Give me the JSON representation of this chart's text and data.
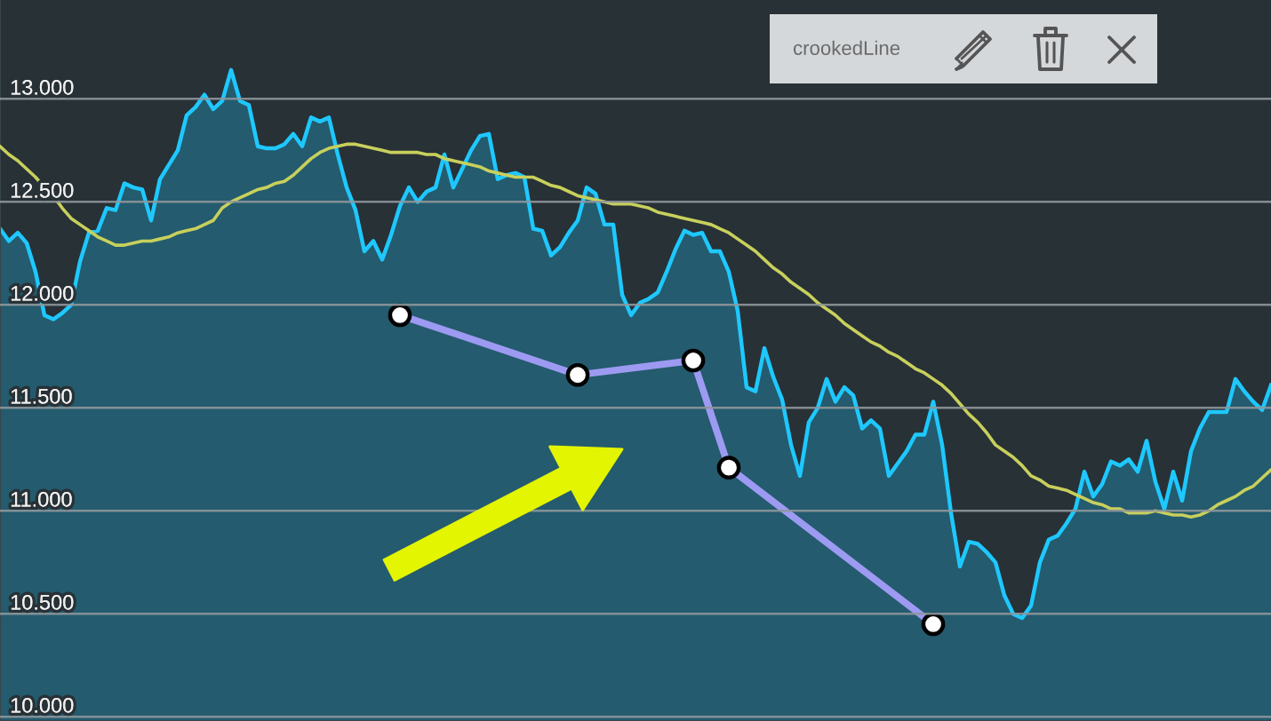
{
  "chart_data": {
    "type": "area",
    "categories": [
      null,
      null,
      null,
      null,
      null,
      null,
      null,
      null,
      null,
      null,
      null,
      null,
      null,
      null,
      null,
      null,
      null,
      null,
      null,
      null,
      null,
      null,
      null,
      null,
      null,
      null,
      null,
      null,
      null,
      null,
      null,
      null,
      null,
      null,
      null,
      null,
      null,
      null,
      null,
      null,
      null,
      null,
      null,
      null,
      null,
      null,
      null,
      null,
      null,
      null,
      null,
      null,
      null,
      null,
      null,
      null,
      null,
      null,
      null,
      null,
      null,
      null,
      null,
      null,
      null,
      null,
      null,
      null,
      null,
      null,
      null,
      null,
      null,
      null,
      null,
      null,
      null,
      null,
      null,
      null,
      null,
      null,
      null,
      null,
      null,
      null,
      null,
      null,
      null,
      null,
      null,
      null,
      null,
      null,
      null,
      null,
      null,
      null,
      null,
      null,
      null,
      null,
      null,
      null,
      null,
      null,
      null,
      null,
      null,
      null,
      null,
      null,
      null,
      null,
      null,
      null,
      null,
      null,
      null,
      null,
      null,
      null,
      null,
      null,
      null,
      null,
      null,
      null,
      null,
      null,
      null,
      null,
      null,
      null,
      null,
      null,
      null,
      null,
      null,
      null,
      null,
      null,
      null,
      null
    ],
    "series": [
      {
        "color": "#1ec8ff",
        "values": [
          12370,
          12310,
          12350,
          12300,
          12160,
          11950,
          11930,
          11960,
          12000,
          12210,
          12350,
          12360,
          12470,
          12460,
          12590,
          12570,
          12560,
          12410,
          12610,
          12680,
          12750,
          12920,
          12960,
          13020,
          12950,
          12990,
          13140,
          12990,
          12970,
          12770,
          12760,
          12760,
          12780,
          12830,
          12770,
          12910,
          12890,
          12910,
          12730,
          12570,
          12460,
          12260,
          12310,
          12220,
          12340,
          12480,
          12570,
          12500,
          12550,
          12570,
          12730,
          12570,
          12660,
          12750,
          12820,
          12830,
          12610,
          12630,
          12640,
          12620,
          12370,
          12360,
          12240,
          12280,
          12350,
          12410,
          12570,
          12540,
          12390,
          12390,
          12050,
          11950,
          12010,
          12030,
          12060,
          12160,
          12270,
          12360,
          12340,
          12350,
          12260,
          12260,
          12160,
          11970,
          11600,
          11580,
          11790,
          11650,
          11540,
          11320,
          11170,
          11430,
          11500,
          11640,
          11530,
          11600,
          11560,
          11400,
          11440,
          11400,
          11170,
          11230,
          11290,
          11370,
          11370,
          11530,
          11320,
          10990,
          10730,
          10850,
          10840,
          10800,
          10750,
          10590,
          10500,
          10480,
          10540,
          10750,
          10860,
          10880,
          10940,
          11010,
          11190,
          11070,
          11130,
          11240,
          11220,
          11250,
          11190,
          11340,
          11140,
          11010,
          11190,
          11050,
          11290,
          11400,
          11480,
          11480,
          11480,
          11640,
          11580,
          11530,
          11490,
          11610
        ]
      },
      {
        "type": "line",
        "color": "#c8d05c",
        "values": [
          12770,
          12730,
          12700,
          12660,
          12620,
          12570,
          12530,
          12470,
          12420,
          12390,
          12360,
          12330,
          12310,
          12290,
          12290,
          12300,
          12310,
          12310,
          12320,
          12330,
          12350,
          12360,
          12370,
          12390,
          12410,
          12470,
          12500,
          12520,
          12540,
          12560,
          12570,
          12590,
          12600,
          12630,
          12670,
          12710,
          12740,
          12760,
          12770,
          12780,
          12780,
          12770,
          12760,
          12750,
          12740,
          12740,
          12740,
          12740,
          12730,
          12730,
          12710,
          12700,
          12690,
          12680,
          12670,
          12650,
          12640,
          12630,
          12620,
          12620,
          12620,
          12600,
          12580,
          12570,
          12550,
          12530,
          12520,
          12510,
          12500,
          12490,
          12490,
          12490,
          12480,
          12470,
          12450,
          12440,
          12430,
          12420,
          12410,
          12400,
          12390,
          12370,
          12350,
          12320,
          12290,
          12260,
          12220,
          12180,
          12150,
          12110,
          12080,
          12050,
          12010,
          11980,
          11950,
          11910,
          11880,
          11850,
          11820,
          11800,
          11770,
          11750,
          11720,
          11690,
          11670,
          11640,
          11610,
          11570,
          11520,
          11470,
          11430,
          11380,
          11320,
          11290,
          11260,
          11220,
          11170,
          11150,
          11120,
          11110,
          11100,
          11080,
          11060,
          11040,
          11030,
          11010,
          11010,
          10990,
          10990,
          10990,
          11000,
          10990,
          10980,
          10980,
          10970,
          10980,
          11000,
          11030,
          11050,
          11070,
          11100,
          11120,
          11160,
          11200
        ]
      },
      {
        "type": "line",
        "color": "#9d9af2",
        "marker": "circle",
        "values": [
          null,
          null,
          null,
          null,
          null,
          null,
          null,
          null,
          null,
          null,
          null,
          null,
          null,
          null,
          null,
          null,
          null,
          null,
          null,
          null,
          null,
          null,
          null,
          null,
          null,
          null,
          null,
          null,
          null,
          null,
          null,
          null,
          null,
          null,
          null,
          null,
          null,
          null,
          null,
          null,
          null,
          null,
          null,
          null,
          null,
          11950,
          null,
          null,
          null,
          null,
          null,
          null,
          null,
          null,
          null,
          null,
          null,
          null,
          null,
          null,
          null,
          null,
          null,
          null,
          null,
          11660,
          null,
          null,
          null,
          null,
          null,
          null,
          null,
          null,
          null,
          null,
          null,
          null,
          11730,
          null,
          null,
          null,
          11210,
          null,
          null,
          null,
          null,
          null,
          null,
          null,
          null,
          null,
          null,
          null,
          null,
          null,
          null,
          null,
          null,
          null,
          null,
          null,
          null,
          null,
          null,
          10450,
          null,
          null,
          null,
          null,
          null,
          null,
          null,
          null,
          null,
          null,
          null,
          null,
          null,
          null,
          null,
          null,
          null,
          null,
          null,
          null,
          null,
          null,
          null,
          null,
          null,
          null,
          null,
          null,
          null,
          null,
          null,
          null,
          null,
          null,
          null,
          null,
          null,
          null
        ]
      }
    ],
    "ylim": [
      9980,
      13480
    ],
    "yticks": [
      {
        "value": 10000,
        "label": "10.000"
      },
      {
        "value": 10500,
        "label": "10.500"
      },
      {
        "value": 11000,
        "label": "11.000"
      },
      {
        "value": 11500,
        "label": "11.500"
      },
      {
        "value": 12000,
        "label": "12.000"
      },
      {
        "value": 12500,
        "label": "12.500"
      },
      {
        "value": 13000,
        "label": "13.000"
      }
    ],
    "grid": "y",
    "tick_labels": "y",
    "annotations": [
      "crookedLine"
    ]
  }
}
